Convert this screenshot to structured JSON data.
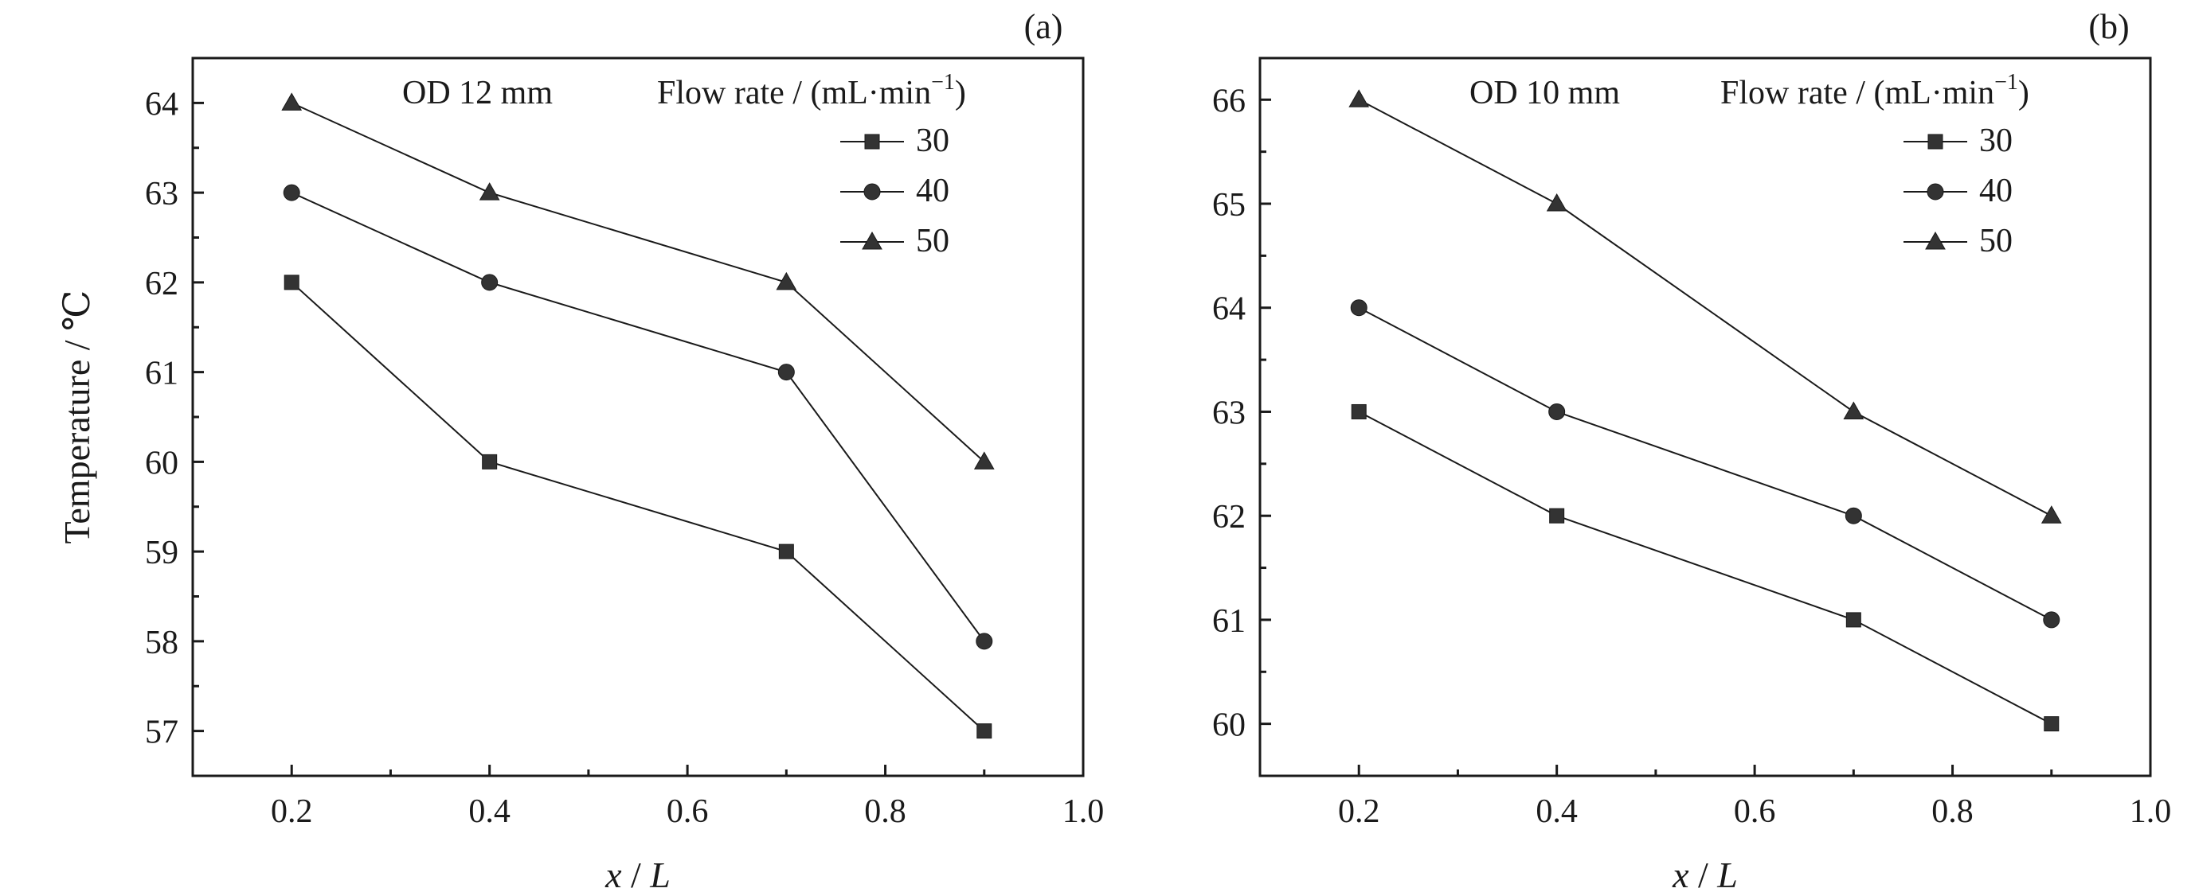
{
  "chart_data": [
    {
      "type": "line",
      "panel_label": "(a)",
      "annotation": "OD 12 mm",
      "legend_title_main": "Flow rate / (mL·min",
      "legend_title_sup": "−1",
      "legend_title_end": ")",
      "xlabel_italic": "x",
      "xlabel_rest": " / ",
      "xlabel_italic2": "L",
      "ylabel": "Temperature / ℃",
      "xlim": [
        0.1,
        1.0
      ],
      "ylim": [
        56.5,
        64.5
      ],
      "xticks": [
        "0.2",
        "0.4",
        "0.6",
        "0.8",
        "1.0"
      ],
      "yticks": [
        "57",
        "58",
        "59",
        "60",
        "61",
        "62",
        "63",
        "64"
      ],
      "x": [
        0.2,
        0.4,
        0.7,
        0.9
      ],
      "legend_position": "top-right",
      "series": [
        {
          "name": "30",
          "marker": "square",
          "values": [
            62,
            60,
            59,
            57
          ]
        },
        {
          "name": "40",
          "marker": "circle",
          "values": [
            63,
            62,
            61,
            58
          ]
        },
        {
          "name": "50",
          "marker": "triangle",
          "values": [
            64,
            63,
            62,
            60
          ]
        }
      ]
    },
    {
      "type": "line",
      "panel_label": "(b)",
      "annotation": "OD 10 mm",
      "legend_title_main": "Flow rate / (mL·min",
      "legend_title_sup": "−1",
      "legend_title_end": ")",
      "xlabel_italic": "x",
      "xlabel_rest": " / ",
      "xlabel_italic2": "L",
      "ylabel": "",
      "xlim": [
        0.1,
        1.0
      ],
      "ylim": [
        59.5,
        66.4
      ],
      "xticks": [
        "0.2",
        "0.4",
        "0.6",
        "0.8",
        "1.0"
      ],
      "yticks": [
        "60",
        "61",
        "62",
        "63",
        "64",
        "65",
        "66"
      ],
      "x": [
        0.2,
        0.4,
        0.7,
        0.9
      ],
      "legend_position": "top-right",
      "series": [
        {
          "name": "30",
          "marker": "square",
          "values": [
            63,
            62,
            61,
            60
          ]
        },
        {
          "name": "40",
          "marker": "circle",
          "values": [
            64,
            63,
            62,
            61
          ]
        },
        {
          "name": "50",
          "marker": "triangle",
          "values": [
            66,
            65,
            63,
            62
          ]
        }
      ]
    }
  ]
}
